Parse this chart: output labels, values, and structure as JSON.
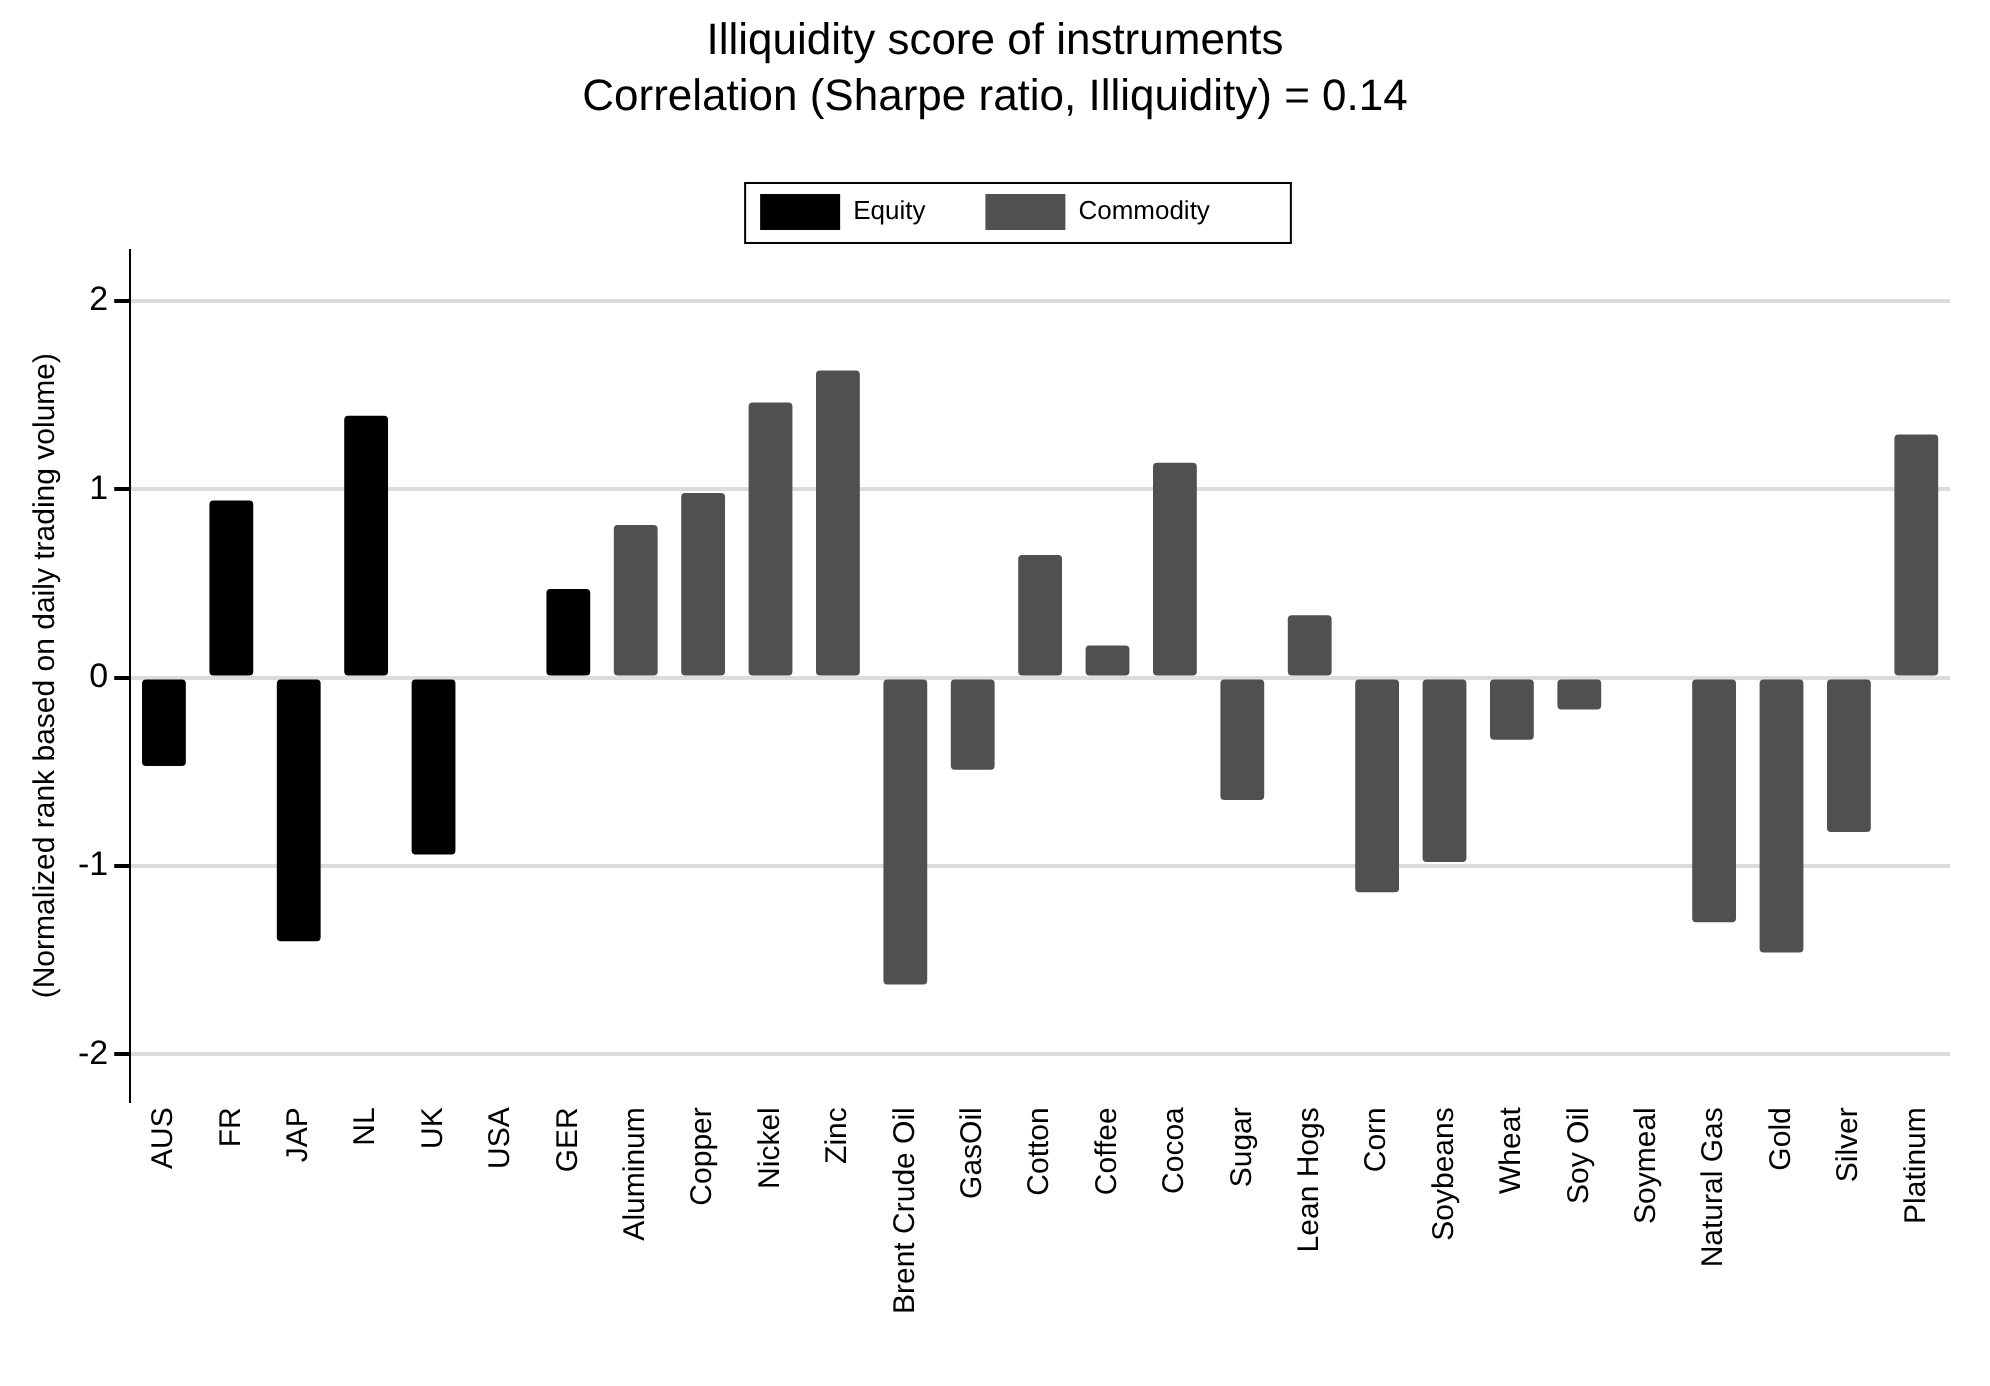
{
  "chart_data": {
    "type": "bar",
    "title": "Illiquidity score of instruments",
    "subtitle": "Correlation (Sharpe ratio, Illiquidity) = 0.14",
    "ylabel": "(Normalized rank based on daily trading volume)",
    "categories": [
      "AUS",
      "FR",
      "JAP",
      "NL",
      "UK",
      "USA",
      "GER",
      "Aluminum",
      "Copper",
      "Nickel",
      "Zinc",
      "Brent Crude Oil",
      "GasOil",
      "Cotton",
      "Coffee",
      "Cocoa",
      "Sugar",
      "Lean Hogs",
      "Corn",
      "Soybeans",
      "Wheat",
      "Soy Oil",
      "Soymeal",
      "Natural Gas",
      "Gold",
      "Silver",
      "Platinum"
    ],
    "series": [
      {
        "name": "Equity",
        "color": "#000000",
        "values": [
          -0.47,
          0.94,
          -1.4,
          1.39,
          -0.94,
          null,
          0.47,
          null,
          null,
          null,
          null,
          null,
          null,
          null,
          null,
          null,
          null,
          null,
          null,
          null,
          null,
          null,
          null,
          null,
          null,
          null,
          null
        ]
      },
      {
        "name": "Commodity",
        "color": "#505050",
        "values": [
          null,
          null,
          null,
          null,
          null,
          null,
          null,
          0.81,
          0.98,
          1.46,
          1.63,
          -1.63,
          -0.49,
          0.65,
          0.17,
          1.14,
          -0.65,
          0.33,
          -1.14,
          -0.98,
          -0.33,
          -0.17,
          null,
          -1.3,
          -1.46,
          -0.82,
          1.29
        ]
      }
    ],
    "ylim": [
      -2.25,
      2.27
    ],
    "yticks": [
      -2,
      -1,
      0,
      1,
      2
    ],
    "grid": "y",
    "legend": "top"
  }
}
